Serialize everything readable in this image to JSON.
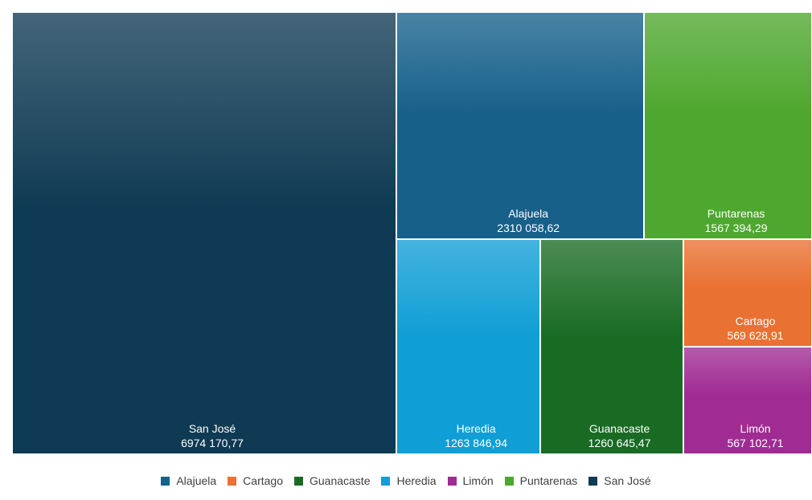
{
  "chart_data": {
    "type": "treemap",
    "title": "",
    "items": [
      {
        "name": "San José",
        "value": 6974170.77,
        "label": "6974 170,77",
        "color": "#0f3a53"
      },
      {
        "name": "Alajuela",
        "value": 2310058.62,
        "label": "2310 058,62",
        "color": "#16608a"
      },
      {
        "name": "Puntarenas",
        "value": 1567394.29,
        "label": "1567 394,29",
        "color": "#4ea72e"
      },
      {
        "name": "Heredia",
        "value": 1263846.94,
        "label": "1263 846,94",
        "color": "#0f9ed5"
      },
      {
        "name": "Guanacaste",
        "value": 1260645.47,
        "label": "1260 645,47",
        "color": "#196b24"
      },
      {
        "name": "Cartago",
        "value": 569628.91,
        "label": "569 628,91",
        "color": "#e97132"
      },
      {
        "name": "Limón",
        "value": 567102.71,
        "label": "567 102,71",
        "color": "#a02b93"
      }
    ],
    "legend": {
      "position": "bottom",
      "entries": [
        {
          "name": "Alajuela",
          "color": "#16608a"
        },
        {
          "name": "Cartago",
          "color": "#e97132"
        },
        {
          "name": "Guanacaste",
          "color": "#196b24"
        },
        {
          "name": "Heredia",
          "color": "#0f9ed5"
        },
        {
          "name": "Limón",
          "color": "#a02b93"
        },
        {
          "name": "Puntarenas",
          "color": "#4ea72e"
        },
        {
          "name": "San José",
          "color": "#0f3a53"
        }
      ]
    }
  }
}
